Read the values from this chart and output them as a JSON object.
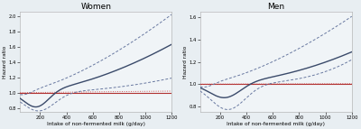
{
  "title_left": "Women",
  "title_right": "Men",
  "xlabel": "Intake of non-fermented milk (g/day)",
  "ylabel": "Hazard ratio",
  "xlim": [
    50,
    1200
  ],
  "xticks": [
    200,
    400,
    600,
    800,
    1000,
    1200
  ],
  "ylim_left": [
    0.75,
    2.05
  ],
  "yticks_left": [
    0.8,
    1.0,
    1.2,
    1.4,
    1.6,
    1.8,
    2.0
  ],
  "ylim_right": [
    0.75,
    1.65
  ],
  "yticks_right": [
    0.8,
    1.0,
    1.2,
    1.4,
    1.6
  ],
  "bg_color": "#e8eef2",
  "plot_bg_color": "#f0f4f7",
  "line_color_main": "#3a4a6a",
  "line_color_ci": "#6878a0",
  "ref_solid_color": "#b03030",
  "ref_dot_color": "#cc5555",
  "lw_main": 1.0,
  "lw_ci": 0.7,
  "lw_ref": 0.8
}
